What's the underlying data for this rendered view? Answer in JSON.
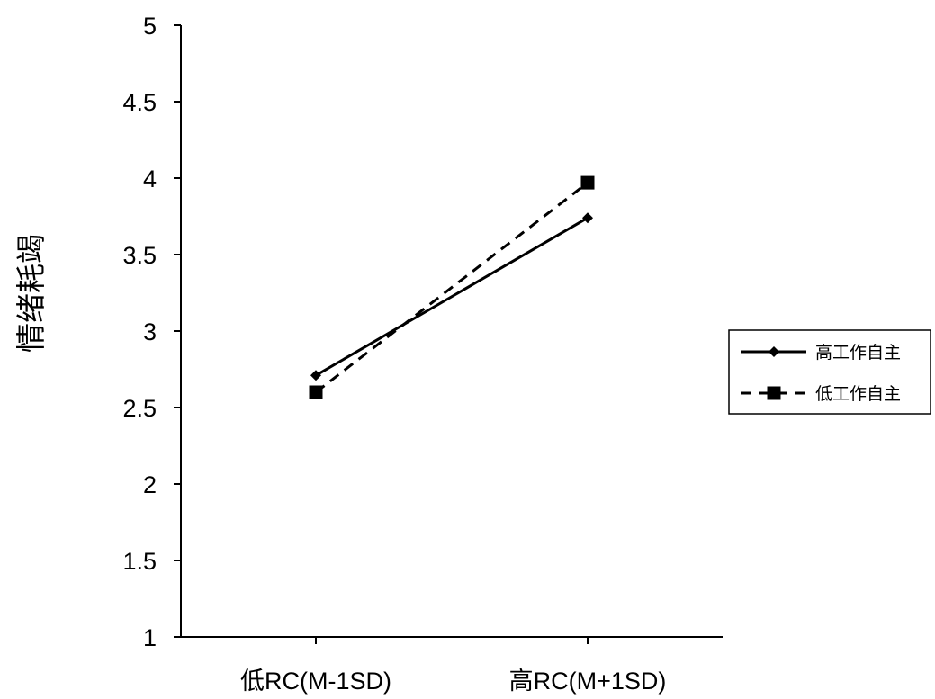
{
  "chart_data": {
    "type": "line",
    "categories": [
      "低RC(M-1SD)",
      "高RC(M+1SD)"
    ],
    "ylabel": "情绪耗竭",
    "xlabel": "",
    "ylim": [
      1,
      5
    ],
    "yticks": [
      "1",
      "1.5",
      "2",
      "2.5",
      "3",
      "3.5",
      "4",
      "4.5",
      "5"
    ],
    "grid": false,
    "legend_position": "right",
    "series": [
      {
        "name": "高工作自主",
        "values": [
          2.71,
          3.74
        ],
        "line_style": "solid",
        "marker": "diamond",
        "color": "#000000"
      },
      {
        "name": "低工作自主",
        "values": [
          2.6,
          3.97
        ],
        "line_style": "dashed",
        "marker": "square",
        "color": "#000000"
      }
    ]
  }
}
